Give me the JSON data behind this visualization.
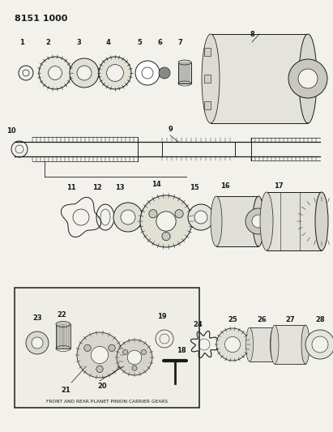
{
  "title": "8151 1000",
  "bg_color": "#f2f1ec",
  "line_color": "#1a1a1a",
  "box_caption": "FRONT AND REAR PLANET PINION CARRIER GEARS",
  "fig_w": 4.11,
  "fig_h": 5.33,
  "dpi": 100
}
